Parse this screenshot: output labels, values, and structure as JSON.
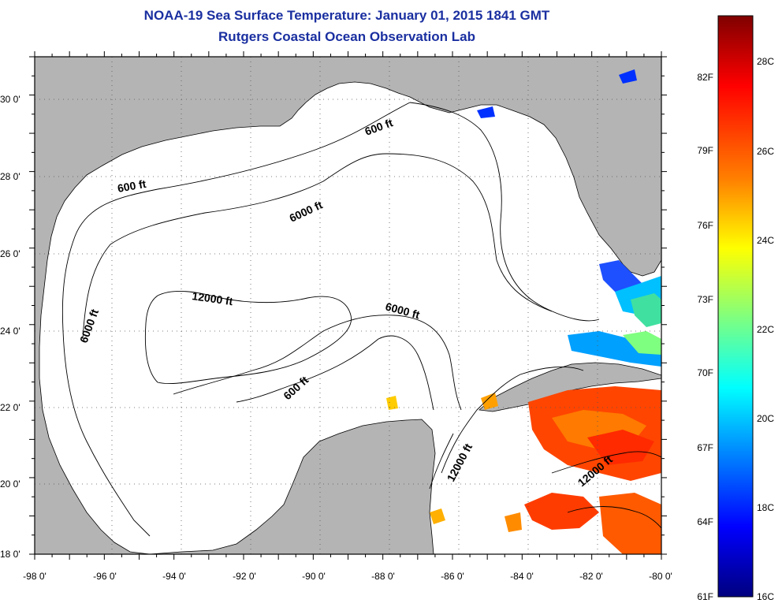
{
  "title": "NOAA-19 Sea Surface Temperature:  January 01, 2015 1841 GMT",
  "subtitle": "Rutgers Coastal Ocean Observation Lab",
  "map": {
    "lon_range": [
      -98,
      -80
    ],
    "lat_range": [
      18,
      31
    ],
    "lon_ticks": [
      "-98 0'",
      "-96 0'",
      "-94 0'",
      "-92 0'",
      "-90 0'",
      "-88 0'",
      "-86 0'",
      "-84 0'",
      "-82 0'",
      "-80 0'"
    ],
    "lat_ticks": [
      "18 0'",
      "20 0'",
      "22 0'",
      "24 0'",
      "26 0'",
      "28 0'",
      "30 0'"
    ],
    "grid": "dotted",
    "land_color": "#b4b4b4",
    "ocean_color": "#ffffff"
  },
  "contours": [
    {
      "label": "600 ft"
    },
    {
      "label": "600 ft"
    },
    {
      "label": "600 ft"
    },
    {
      "label": "6000 ft"
    },
    {
      "label": "6000 ft"
    },
    {
      "label": "6000 ft"
    },
    {
      "label": "12000 ft"
    },
    {
      "label": "12000 ft"
    },
    {
      "label": "12000 ft"
    }
  ],
  "colorbar": {
    "fahrenheit_labels": [
      "82F",
      "79F",
      "76F",
      "73F",
      "70F",
      "67F",
      "64F",
      "61F"
    ],
    "celsius_labels": [
      "28C",
      "26C",
      "24C",
      "22C",
      "20C",
      "18C",
      "16C"
    ],
    "colors": [
      "#7f0000",
      "#ff0000",
      "#ff7f00",
      "#ffff00",
      "#7fff7f",
      "#00ffff",
      "#007fff",
      "#0000ff",
      "#00007f"
    ]
  }
}
